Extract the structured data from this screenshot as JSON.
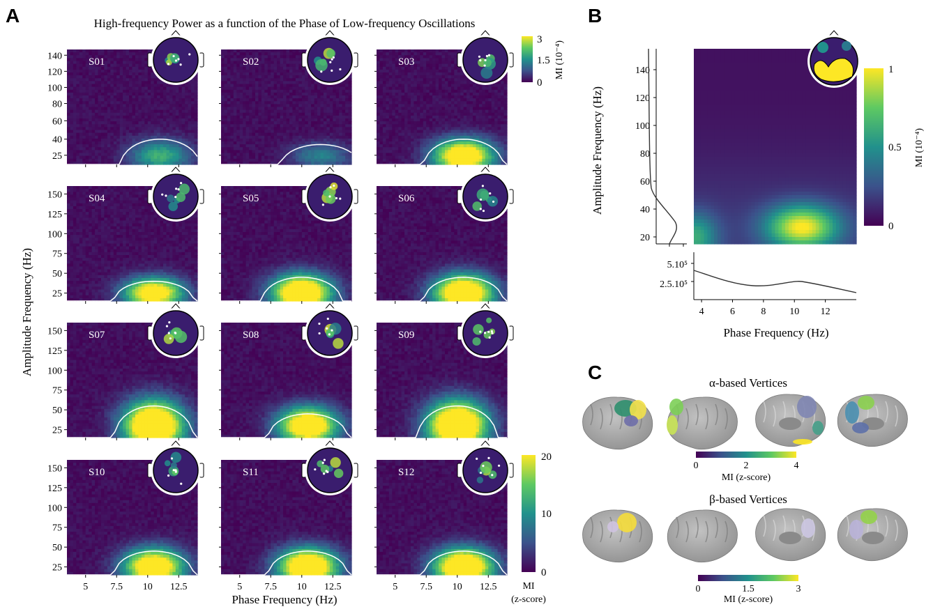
{
  "panels": {
    "a": {
      "letter": "A",
      "title": "High-frequency Power as a function of the Phase of Low-frequency Oscillations",
      "ylabel": "Amplitude Frequency (Hz)",
      "xlabel": "Phase Frequency (Hz)",
      "topo_colorbar": {
        "label": "MI (10⁻⁴)",
        "ticks": [
          "3",
          "1.5",
          "0"
        ]
      },
      "main_colorbar": {
        "label_line1": "MI",
        "label_line2": "(z-score)",
        "ticks": [
          "20",
          "10",
          "0"
        ]
      }
    },
    "b": {
      "letter": "B",
      "ylabel": "Amplitude Frequency (Hz)",
      "xlabel": "Phase Frequency (Hz)",
      "colorbar": {
        "label": "MI (10⁻⁴)",
        "ticks": [
          "1",
          "0.5",
          "0"
        ]
      },
      "marginal_y_ticks": [
        "5.10⁵",
        "2.5.10⁵"
      ]
    },
    "c": {
      "letter": "C",
      "alpha_title": "α-based Vertices",
      "beta_title": "β-based Vertices",
      "alpha_colorbar": {
        "label": "MI (z-score)",
        "ticks": [
          "0",
          "2",
          "4"
        ]
      },
      "beta_colorbar": {
        "label": "MI (z-score)",
        "ticks": [
          "0",
          "1.5",
          "3"
        ]
      }
    }
  },
  "colors": {
    "viridis_low": "#440154",
    "viridis_mid": "#21918c",
    "viridis_high": "#fde725",
    "contour": "#ffffff",
    "brain": "#a8a8a8"
  },
  "chart_data": [
    {
      "type": "heatmap",
      "panel": "A",
      "xlim": [
        3.5,
        14
      ],
      "xticks": [
        5,
        7.5,
        10,
        12.5
      ],
      "yticks_row1": [
        25,
        40,
        60,
        80,
        100,
        120,
        140
      ],
      "yticks_rows2to4": [
        25,
        50,
        75,
        100,
        125,
        150
      ],
      "subjects": [
        {
          "label": "S01",
          "peak_x": 11.0,
          "peak_y": 25,
          "peak": 12,
          "contour_top": 40
        },
        {
          "label": "S02",
          "peak_x": 11.5,
          "peak_y": 25,
          "peak": 8,
          "contour_top": 35
        },
        {
          "label": "S03",
          "peak_x": 10.5,
          "peak_y": 25,
          "peak": 26,
          "contour_top": 40
        },
        {
          "label": "S04",
          "peak_x": 10.5,
          "peak_y": 25,
          "peak": 24,
          "contour_top": 40
        },
        {
          "label": "S05",
          "peak_x": 10.0,
          "peak_y": 25,
          "peak": 28,
          "contour_top": 45
        },
        {
          "label": "S06",
          "peak_x": 10.5,
          "peak_y": 25,
          "peak": 28,
          "contour_top": 45
        },
        {
          "label": "S07",
          "peak_x": 10.5,
          "peak_y": 30,
          "peak": 30,
          "contour_top": 55
        },
        {
          "label": "S08",
          "peak_x": 10.5,
          "peak_y": 30,
          "peak": 26,
          "contour_top": 45
        },
        {
          "label": "S09",
          "peak_x": 10.0,
          "peak_y": 30,
          "peak": 30,
          "contour_top": 55
        },
        {
          "label": "S10",
          "peak_x": 10.5,
          "peak_y": 25,
          "peak": 26,
          "contour_top": 45
        },
        {
          "label": "S11",
          "peak_x": 10.5,
          "peak_y": 25,
          "peak": 28,
          "contour_top": 45
        },
        {
          "label": "S12",
          "peak_x": 10.5,
          "peak_y": 25,
          "peak": 28,
          "contour_top": 45
        }
      ],
      "colorbar_range": [
        0,
        20
      ]
    },
    {
      "type": "heatmap",
      "panel": "B",
      "xlim": [
        3.5,
        14
      ],
      "xticks": [
        4,
        6,
        8,
        10,
        12
      ],
      "ylim": [
        15,
        155
      ],
      "yticks": [
        20,
        40,
        60,
        80,
        100,
        120,
        140
      ],
      "peak_x": 10.5,
      "peak_y": 27,
      "colorbar_range": [
        0,
        1
      ]
    }
  ]
}
